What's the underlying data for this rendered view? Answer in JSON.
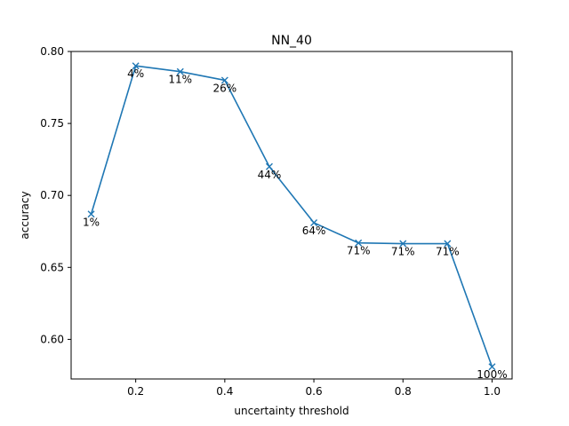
{
  "chart_data": {
    "type": "line",
    "title": "NN_40",
    "xlabel": "uncertainty threshold",
    "ylabel": "accuracy",
    "xlim": [
      0.055,
      1.045
    ],
    "ylim": [
      0.5725,
      0.8
    ],
    "xticks": [
      0.2,
      0.4,
      0.6,
      0.8,
      1.0
    ],
    "xtick_labels": [
      "0.2",
      "0.4",
      "0.6",
      "0.8",
      "1.0"
    ],
    "yticks": [
      0.6,
      0.65,
      0.7,
      0.75,
      0.8
    ],
    "ytick_labels": [
      "0.60",
      "0.65",
      "0.70",
      "0.75",
      "0.80"
    ],
    "grid": false,
    "legend": null,
    "series": [
      {
        "color": "#1f77b4",
        "marker": "x",
        "x": [
          0.1,
          0.2,
          0.3,
          0.4,
          0.5,
          0.6,
          0.7,
          0.8,
          0.9,
          1.0
        ],
        "y": [
          0.687,
          0.79,
          0.786,
          0.78,
          0.72,
          0.681,
          0.667,
          0.6665,
          0.6665,
          0.581
        ],
        "labels": [
          "1%",
          "4%",
          "11%",
          "26%",
          "44%",
          "64%",
          "71%",
          "71%",
          "71%",
          "100%"
        ]
      }
    ]
  }
}
